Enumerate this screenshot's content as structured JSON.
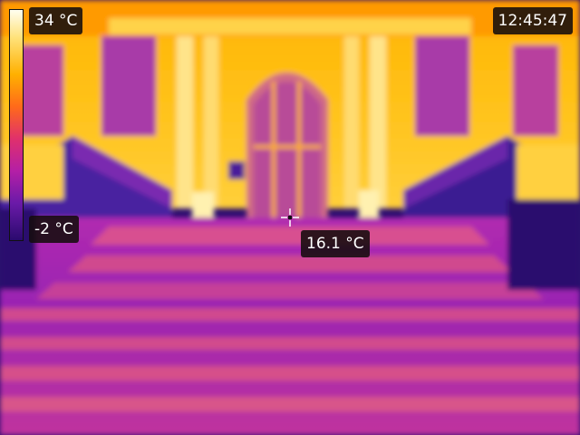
{
  "overlay": {
    "temp_max": "34 °C",
    "temp_min": "-2 °C",
    "clock": "12:45:47",
    "spot_temperature": "16.1 °C"
  },
  "palette": {
    "hot": "#fffef0",
    "warm": "#ffb000",
    "mid": "#e0306c",
    "cool": "#b41fa6",
    "cold": "#2a0a6e"
  }
}
